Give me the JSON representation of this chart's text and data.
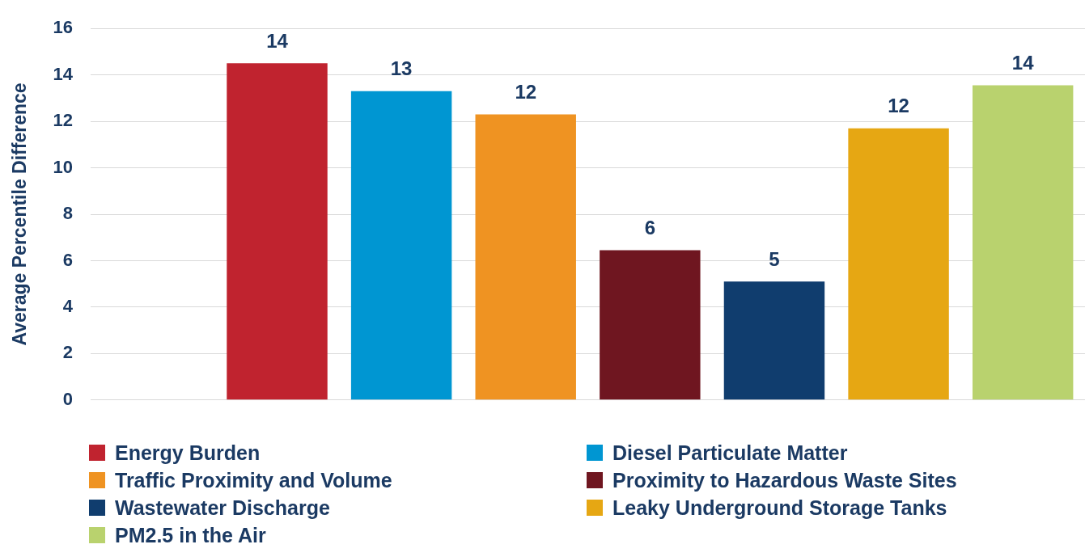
{
  "chart_data": {
    "type": "bar",
    "ylabel": "Average Percentile Difference",
    "categories": [
      null,
      null,
      null,
      null,
      null,
      null,
      null,
      null
    ],
    "ylim": [
      0,
      16
    ],
    "yticks": [
      0,
      2,
      4,
      6,
      8,
      10,
      12,
      14,
      16
    ],
    "grid": "y",
    "legend": "bottom",
    "series": [
      {
        "name": "Energy Burden",
        "color": "#c0232f",
        "values": [
          null,
          14.5,
          null,
          null,
          null,
          null,
          null,
          null
        ],
        "value_labels": [
          null,
          "14",
          null,
          null,
          null,
          null,
          null,
          null
        ]
      },
      {
        "name": "Diesel Particulate Matter",
        "color": "#0096d2",
        "values": [
          null,
          null,
          13.3,
          null,
          null,
          null,
          null,
          null
        ],
        "value_labels": [
          null,
          null,
          "13",
          null,
          null,
          null,
          null,
          null
        ]
      },
      {
        "name": "Traffic Proximity and Volume",
        "color": "#ef9322",
        "values": [
          null,
          null,
          null,
          12.3,
          null,
          null,
          null,
          null
        ],
        "value_labels": [
          null,
          null,
          null,
          "12",
          null,
          null,
          null,
          null
        ]
      },
      {
        "name": "Proximity to Hazardous Waste Sites",
        "color": "#6f1620",
        "values": [
          null,
          null,
          null,
          null,
          6.45,
          null,
          null,
          null
        ],
        "value_labels": [
          null,
          null,
          null,
          null,
          "6",
          null,
          null,
          null
        ]
      },
      {
        "name": "Wastewater Discharge",
        "color": "#103d6e",
        "values": [
          null,
          null,
          null,
          null,
          null,
          5.1,
          null,
          null
        ],
        "value_labels": [
          null,
          null,
          null,
          null,
          null,
          "5",
          null,
          null
        ]
      },
      {
        "name": "Leaky Underground Storage Tanks",
        "color": "#e6a713",
        "values": [
          null,
          null,
          null,
          null,
          null,
          null,
          11.7,
          null
        ],
        "value_labels": [
          null,
          null,
          null,
          null,
          null,
          null,
          "12",
          null
        ]
      },
      {
        "name": "PM2.5 in the Air",
        "color": "#b9d26e",
        "values": [
          null,
          null,
          null,
          null,
          null,
          null,
          null,
          13.55
        ],
        "value_labels": [
          null,
          null,
          null,
          null,
          null,
          null,
          null,
          "14"
        ]
      }
    ]
  }
}
